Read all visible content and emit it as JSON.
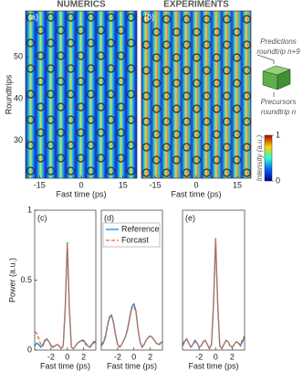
{
  "chart_data": [
    {
      "type": "heatmap",
      "title": "NUMERICS",
      "label": "(a)",
      "xlabel": "Fast time (ps)",
      "ylabel": "Roundtrips",
      "xlim": [
        -20,
        20
      ],
      "xticks": [
        -15,
        0,
        15
      ],
      "ylim": [
        21,
        61
      ],
      "yticks": [
        30,
        40,
        50
      ]
    },
    {
      "type": "heatmap",
      "title": "EXPERIMENTS",
      "label": "(b)",
      "xlabel": "Fast time (ps)",
      "xlim": [
        -20,
        20
      ],
      "xticks": [
        -15,
        0,
        15
      ],
      "ylim": [
        21,
        61
      ],
      "annotations": [
        "Predictions",
        "roundtrip n+9",
        "Precursors",
        "roundtrip n"
      ],
      "colorbar": {
        "label": "Intensity (a.u.)",
        "lim": [
          0,
          1
        ],
        "ticks": [
          0,
          1
        ]
      }
    },
    {
      "type": "line",
      "label": "(c)",
      "xlabel": "Fast time (ps)",
      "ylabel": "Power (a.u.)",
      "xlim": [
        -4,
        3.5
      ],
      "xticks": [
        -2,
        0,
        2
      ],
      "ylim": [
        0,
        1
      ],
      "yticks": [
        0,
        0.5,
        1
      ],
      "x": [
        -4,
        -3.75,
        -3.5,
        -3.25,
        -3,
        -2.75,
        -2.5,
        -2.25,
        -2,
        -1.75,
        -1.5,
        -1.25,
        -1,
        -0.75,
        -0.5,
        -0.25,
        0,
        0.25,
        0.5,
        0.75,
        1,
        1.25,
        1.5,
        1.75,
        2,
        2.25,
        2.5,
        2.75,
        3,
        3.25,
        3.5
      ],
      "series": [
        {
          "name": "Reference",
          "color": "#2a7fd4",
          "dash": false,
          "values": [
            0.03,
            0.05,
            0.04,
            0.02,
            0.04,
            0.07,
            0.08,
            0.06,
            0.03,
            0.02,
            0.03,
            0.04,
            0.03,
            0.01,
            0.03,
            0.3,
            0.77,
            0.3,
            0.02,
            0.01,
            0.03,
            0.05,
            0.06,
            0.07,
            0.07,
            0.05,
            0.03,
            0.02,
            0.04,
            0.06,
            0.06
          ]
        },
        {
          "name": "Forcast",
          "color": "#e8692a",
          "dash": true,
          "values": [
            0.13,
            0.12,
            0.08,
            0.04,
            0.03,
            0.06,
            0.08,
            0.06,
            0.04,
            0.02,
            0.03,
            0.04,
            0.03,
            0.01,
            0.03,
            0.32,
            0.76,
            0.31,
            0.02,
            0.01,
            0.03,
            0.05,
            0.06,
            0.07,
            0.06,
            0.04,
            0.03,
            0.02,
            0.03,
            0.05,
            0.06
          ]
        }
      ]
    },
    {
      "type": "line",
      "label": "(d)",
      "xlabel": "Fast time (ps)",
      "legend": true,
      "xlim": [
        -4,
        3.5
      ],
      "xticks": [
        -2,
        0,
        2
      ],
      "ylim": [
        0,
        1
      ],
      "x": [
        -4,
        -3.75,
        -3.5,
        -3.25,
        -3,
        -2.75,
        -2.5,
        -2.25,
        -2,
        -1.75,
        -1.5,
        -1.25,
        -1,
        -0.75,
        -0.5,
        -0.25,
        0,
        0.25,
        0.5,
        0.75,
        1,
        1.25,
        1.5,
        1.75,
        2,
        2.25,
        2.5,
        2.75,
        3,
        3.25,
        3.5
      ],
      "series": [
        {
          "name": "Reference",
          "color": "#2a7fd4",
          "dash": false,
          "values": [
            0.03,
            0.05,
            0.09,
            0.17,
            0.23,
            0.25,
            0.2,
            0.11,
            0.04,
            0.02,
            0.04,
            0.07,
            0.1,
            0.16,
            0.24,
            0.31,
            0.33,
            0.28,
            0.15,
            0.06,
            0.02,
            0.04,
            0.07,
            0.09,
            0.1,
            0.09,
            0.07,
            0.05,
            0.04,
            0.05,
            0.06
          ]
        },
        {
          "name": "Forcast",
          "color": "#e8692a",
          "dash": true,
          "values": [
            0.04,
            0.06,
            0.1,
            0.18,
            0.24,
            0.25,
            0.19,
            0.1,
            0.04,
            0.02,
            0.04,
            0.07,
            0.1,
            0.15,
            0.23,
            0.3,
            0.31,
            0.27,
            0.15,
            0.06,
            0.02,
            0.04,
            0.07,
            0.09,
            0.1,
            0.09,
            0.07,
            0.05,
            0.04,
            0.04,
            0.05
          ]
        }
      ]
    },
    {
      "type": "line",
      "label": "(e)",
      "xlabel": "Fast time (ps)",
      "xlim": [
        -4,
        3.5
      ],
      "xticks": [
        -2,
        0,
        2
      ],
      "ylim": [
        0,
        1
      ],
      "x": [
        -4,
        -3.75,
        -3.5,
        -3.25,
        -3,
        -2.75,
        -2.5,
        -2.25,
        -2,
        -1.75,
        -1.5,
        -1.25,
        -1,
        -0.75,
        -0.5,
        -0.25,
        0,
        0.25,
        0.5,
        0.75,
        1,
        1.25,
        1.5,
        1.75,
        2,
        2.25,
        2.5,
        2.75,
        3,
        3.25,
        3.5
      ],
      "series": [
        {
          "name": "Reference",
          "color": "#2a7fd4",
          "dash": false,
          "values": [
            0.03,
            0.06,
            0.08,
            0.05,
            0.02,
            0.04,
            0.07,
            0.05,
            0.02,
            0.03,
            0.06,
            0.07,
            0.04,
            0.01,
            0.04,
            0.33,
            0.8,
            0.33,
            0.03,
            0.01,
            0.04,
            0.07,
            0.06,
            0.03,
            0.02,
            0.04,
            0.06,
            0.05,
            0.03,
            0.06,
            0.09
          ]
        },
        {
          "name": "Forcast",
          "color": "#e8692a",
          "dash": true,
          "values": [
            0.04,
            0.07,
            0.08,
            0.05,
            0.02,
            0.04,
            0.06,
            0.05,
            0.02,
            0.03,
            0.06,
            0.07,
            0.04,
            0.01,
            0.04,
            0.35,
            0.79,
            0.34,
            0.03,
            0.01,
            0.04,
            0.07,
            0.06,
            0.03,
            0.02,
            0.04,
            0.06,
            0.05,
            0.04,
            0.08,
            0.1
          ]
        }
      ]
    }
  ]
}
